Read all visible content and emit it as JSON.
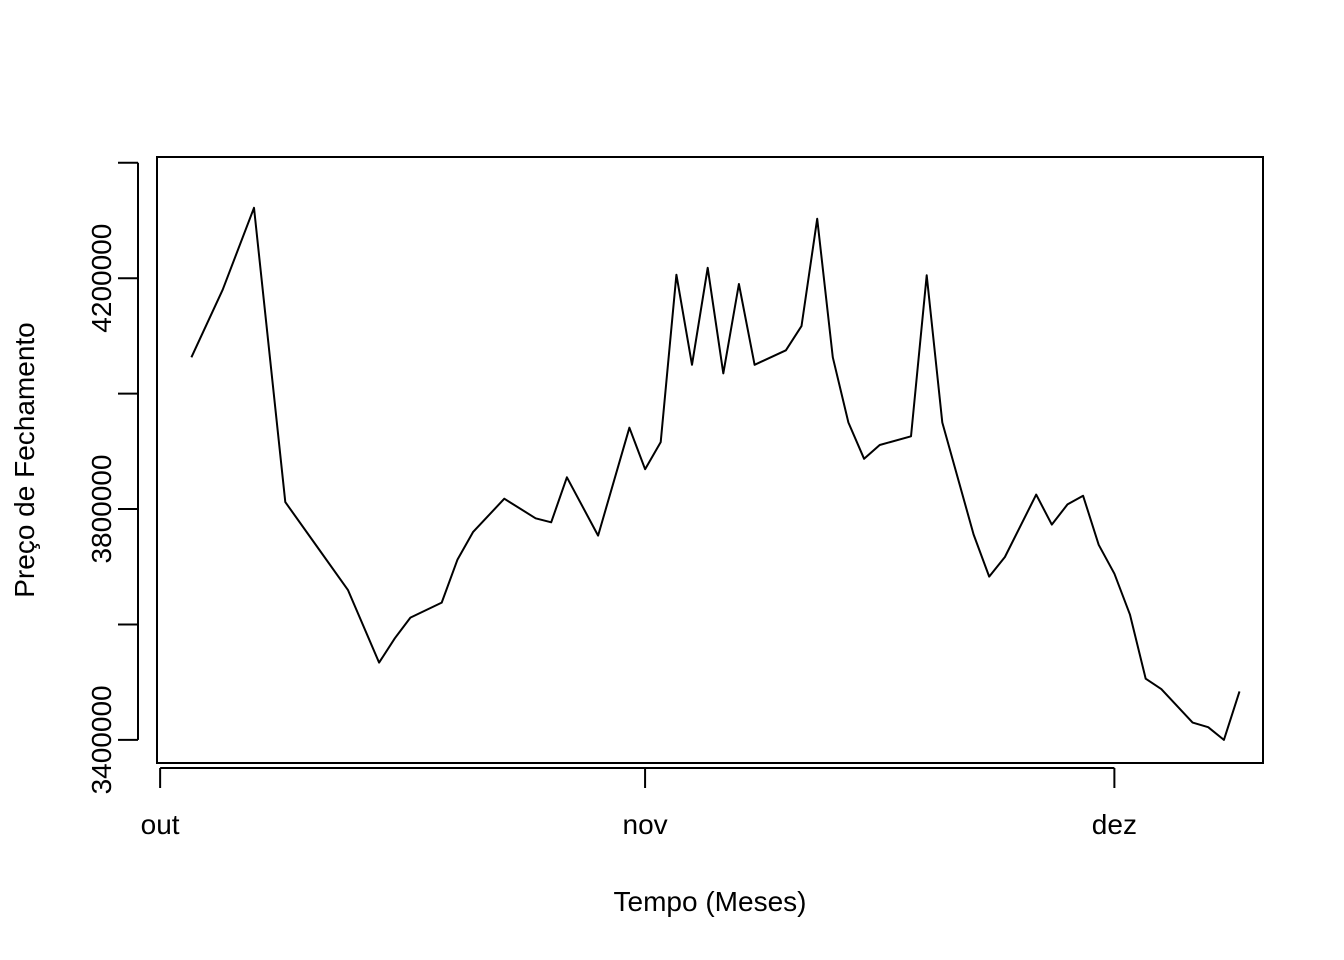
{
  "chart_data": {
    "type": "line",
    "title": "",
    "xlabel": "Tempo (Meses)",
    "ylabel": "Preço de Fechamento",
    "x_axis": {
      "ticks": [
        {
          "label": "out",
          "day": 0
        },
        {
          "label": "nov",
          "day": 31
        },
        {
          "label": "dez",
          "day": 61
        }
      ],
      "xlim": [
        -0.2,
        70.5
      ]
    },
    "y_axis": {
      "ticks": [
        3400000,
        3600000,
        3800000,
        4000000,
        4200000,
        4400000
      ],
      "labeled_ticks": [
        "3400000",
        "3800000",
        "4200000"
      ],
      "ylim": [
        3360000,
        4410000
      ]
    },
    "grid": false,
    "legend": "none",
    "line_color": "#000000",
    "series": [
      {
        "x": [
          2,
          4,
          6,
          8,
          10,
          12,
          14,
          15,
          16,
          18,
          19,
          20,
          22,
          24,
          25,
          26,
          28,
          30,
          31,
          32,
          33,
          34,
          35,
          36,
          37,
          38,
          40,
          41,
          42,
          43,
          44,
          45,
          46,
          48,
          49,
          50,
          52,
          53,
          54,
          56,
          57,
          58,
          59,
          60,
          61,
          62,
          63,
          64,
          66,
          67,
          68,
          69
        ],
        "values": [
          4063000,
          4180000,
          4322000,
          3812000,
          3736000,
          3660000,
          3534000,
          3576000,
          3612000,
          3638000,
          3712000,
          3760000,
          3818000,
          3784000,
          3777000,
          3855000,
          3754000,
          3941000,
          3869000,
          3916000,
          4206000,
          4050000,
          4218000,
          4035000,
          4190000,
          4050000,
          4075000,
          4117000,
          4303000,
          4063000,
          3950000,
          3887000,
          3911000,
          3926000,
          4205000,
          3950000,
          3756000,
          3683000,
          3717000,
          3825000,
          3773000,
          3808000,
          3823000,
          3738000,
          3688000,
          3617000,
          3506000,
          3488000,
          3430000,
          3422000,
          3400000,
          3484000
        ]
      }
    ]
  }
}
